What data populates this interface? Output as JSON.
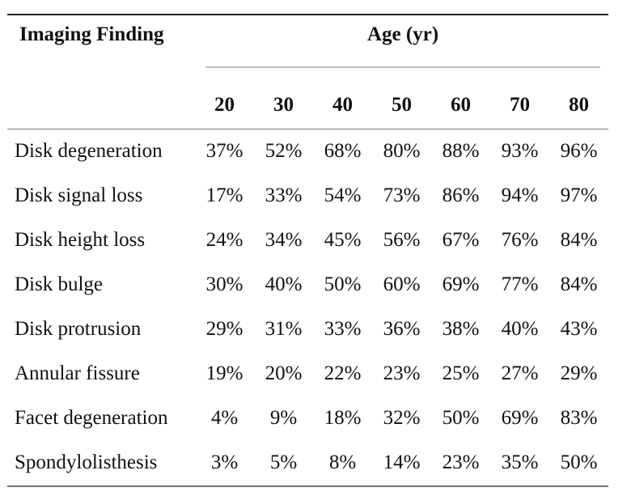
{
  "table": {
    "finding_header": "Imaging Finding",
    "group_header": "Age (yr)",
    "age_columns": [
      "20",
      "30",
      "40",
      "50",
      "60",
      "70",
      "80"
    ],
    "rows": [
      {
        "label": "Disk degeneration",
        "values": [
          "37%",
          "52%",
          "68%",
          "80%",
          "88%",
          "93%",
          "96%"
        ]
      },
      {
        "label": "Disk signal loss",
        "values": [
          "17%",
          "33%",
          "54%",
          "73%",
          "86%",
          "94%",
          "97%"
        ]
      },
      {
        "label": "Disk height loss",
        "values": [
          "24%",
          "34%",
          "45%",
          "56%",
          "67%",
          "76%",
          "84%"
        ]
      },
      {
        "label": "Disk bulge",
        "values": [
          "30%",
          "40%",
          "50%",
          "60%",
          "69%",
          "77%",
          "84%"
        ]
      },
      {
        "label": "Disk protrusion",
        "values": [
          "29%",
          "31%",
          "33%",
          "36%",
          "38%",
          "40%",
          "43%"
        ]
      },
      {
        "label": "Annular fissure",
        "values": [
          "19%",
          "20%",
          "22%",
          "23%",
          "25%",
          "27%",
          "29%"
        ]
      },
      {
        "label": "Facet degeneration",
        "values": [
          "4%",
          "9%",
          "18%",
          "32%",
          "50%",
          "69%",
          "83%"
        ]
      },
      {
        "label": "Spondylolisthesis",
        "values": [
          "3%",
          "5%",
          "8%",
          "14%",
          "23%",
          "35%",
          "50%"
        ]
      }
    ]
  }
}
